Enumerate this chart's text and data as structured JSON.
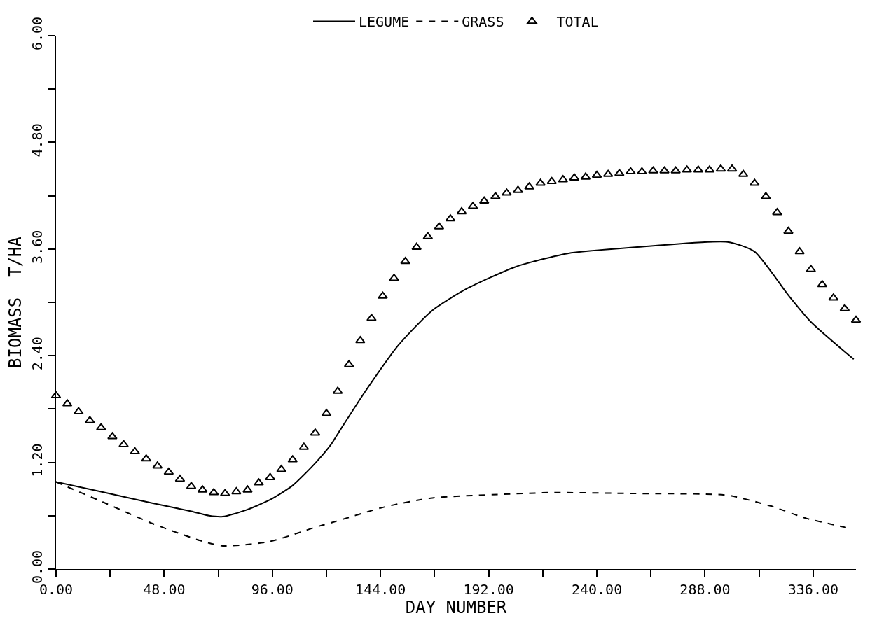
{
  "chart_data": {
    "type": "line",
    "xlabel": "DAY NUMBER",
    "ylabel": "BIOMASS  T/HA",
    "xlim": [
      0,
      355
    ],
    "ylim": [
      0,
      6
    ],
    "xticks": [
      {
        "value": 0,
        "label": "0.00"
      },
      {
        "value": 24,
        "label": null
      },
      {
        "value": 48,
        "label": "48.00"
      },
      {
        "value": 72,
        "label": null
      },
      {
        "value": 96,
        "label": "96.00"
      },
      {
        "value": 120,
        "label": null
      },
      {
        "value": 144,
        "label": "144.00"
      },
      {
        "value": 168,
        "label": null
      },
      {
        "value": 192,
        "label": "192.00"
      },
      {
        "value": 216,
        "label": null
      },
      {
        "value": 240,
        "label": "240.00"
      },
      {
        "value": 264,
        "label": null
      },
      {
        "value": 288,
        "label": "288.00"
      },
      {
        "value": 312,
        "label": null
      },
      {
        "value": 336,
        "label": "336.00"
      }
    ],
    "yticks": [
      {
        "value": 0,
        "label": "0.00"
      },
      {
        "value": 0.6,
        "label": null
      },
      {
        "value": 1.2,
        "label": "1.20"
      },
      {
        "value": 1.8,
        "label": null
      },
      {
        "value": 2.4,
        "label": "2.40"
      },
      {
        "value": 3.0,
        "label": null
      },
      {
        "value": 3.6,
        "label": "3.60"
      },
      {
        "value": 4.2,
        "label": null
      },
      {
        "value": 4.8,
        "label": "4.80"
      },
      {
        "value": 5.4,
        "label": null
      },
      {
        "value": 6.0,
        "label": "6.00"
      }
    ],
    "legend": "top",
    "series": [
      {
        "name": "LEGUME",
        "color": "#000000",
        "line_style": "solid",
        "marker": "none",
        "x": [
          0,
          20,
          43,
          60,
          68,
          74,
          84,
          95,
          105,
          115,
          122,
          126,
          137,
          152,
          167,
          182,
          204,
          227,
          257,
          298,
          310,
          325,
          335,
          354
        ],
        "values": [
          0.98,
          0.87,
          0.74,
          0.65,
          0.6,
          0.59,
          0.66,
          0.78,
          0.94,
          1.19,
          1.4,
          1.56,
          1.99,
          2.52,
          2.91,
          3.15,
          3.4,
          3.55,
          3.62,
          3.68,
          3.57,
          3.08,
          2.78,
          2.36
        ]
      },
      {
        "name": "GRASS",
        "color": "#000000",
        "line_style": "dashed",
        "marker": "none",
        "x": [
          0,
          22,
          43,
          64,
          74,
          95,
          115,
          122,
          146,
          167,
          197,
          220,
          257,
          298,
          317,
          333,
          352
        ],
        "values": [
          0.98,
          0.74,
          0.51,
          0.32,
          0.26,
          0.31,
          0.47,
          0.52,
          0.7,
          0.8,
          0.84,
          0.86,
          0.85,
          0.83,
          0.71,
          0.57,
          0.46
        ]
      },
      {
        "name": "TOTAL",
        "type": "scatter",
        "color": "#000000",
        "marker": "triangle",
        "x": [
          0,
          5,
          10,
          15,
          20,
          25,
          30,
          35,
          40,
          45,
          50,
          55,
          60,
          65,
          70,
          75,
          80,
          85,
          90,
          95,
          100,
          105,
          110,
          115,
          120,
          125,
          130,
          135,
          140,
          145,
          150,
          155,
          160,
          165,
          170,
          175,
          180,
          185,
          190,
          195,
          200,
          205,
          210,
          215,
          220,
          225,
          230,
          235,
          240,
          245,
          250,
          255,
          260,
          265,
          270,
          275,
          280,
          285,
          290,
          295,
          300,
          305,
          310,
          315,
          320,
          325,
          330,
          335,
          340,
          345,
          350,
          355
        ],
        "values": [
          1.95,
          1.86,
          1.77,
          1.67,
          1.59,
          1.49,
          1.4,
          1.32,
          1.24,
          1.16,
          1.09,
          1.01,
          0.93,
          0.89,
          0.86,
          0.85,
          0.87,
          0.89,
          0.97,
          1.03,
          1.12,
          1.23,
          1.37,
          1.53,
          1.75,
          2.0,
          2.3,
          2.57,
          2.82,
          3.07,
          3.27,
          3.46,
          3.62,
          3.74,
          3.85,
          3.94,
          4.02,
          4.08,
          4.14,
          4.19,
          4.23,
          4.26,
          4.3,
          4.34,
          4.36,
          4.38,
          4.4,
          4.41,
          4.43,
          4.44,
          4.45,
          4.47,
          4.47,
          4.48,
          4.48,
          4.48,
          4.49,
          4.49,
          4.49,
          4.5,
          4.5,
          4.44,
          4.34,
          4.19,
          4.01,
          3.8,
          3.57,
          3.37,
          3.2,
          3.05,
          2.93,
          2.8
        ]
      }
    ]
  }
}
